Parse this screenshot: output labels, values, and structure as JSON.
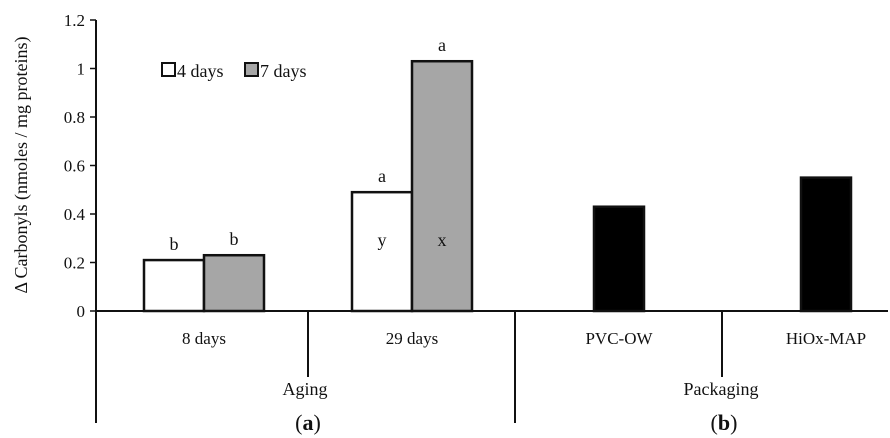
{
  "chart_data": {
    "type": "bar",
    "ylabel": "Δ Carbonyls (nmoles / mg proteins)",
    "ylim": [
      0,
      1.2
    ],
    "yticks": [
      "0",
      "0.2",
      "0.4",
      "0.6",
      "0.8",
      "1",
      "1.2"
    ],
    "ytick_values": [
      0,
      0.2,
      0.4,
      0.6,
      0.8,
      1.0,
      1.2
    ],
    "grid": false,
    "legend": {
      "position": "top-left",
      "entries": [
        {
          "name": "4 days",
          "color": "#ffffff"
        },
        {
          "name": "7 days",
          "color": "#a6a6a6"
        }
      ]
    },
    "groups": [
      {
        "name": "Aging",
        "panel": "(a)",
        "panel_letter": "a",
        "categories": [
          {
            "label": "8 days",
            "bars": [
              {
                "series": "4 days",
                "value": 0.21,
                "color": "#ffffff",
                "top_label": "b",
                "inner_label": ""
              },
              {
                "series": "7 days",
                "value": 0.23,
                "color": "#a6a6a6",
                "top_label": "b",
                "inner_label": ""
              }
            ]
          },
          {
            "label": "29 days",
            "bars": [
              {
                "series": "4 days",
                "value": 0.49,
                "color": "#ffffff",
                "top_label": "a",
                "inner_label": "y"
              },
              {
                "series": "7 days",
                "value": 1.03,
                "color": "#a6a6a6",
                "top_label": "a",
                "inner_label": "x"
              }
            ]
          }
        ]
      },
      {
        "name": "Packaging",
        "panel": "(b)",
        "panel_letter": "b",
        "categories": [
          {
            "label": "PVC-OW",
            "bars": [
              {
                "series": "",
                "value": 0.43,
                "color": "#000000",
                "top_label": "",
                "inner_label": ""
              }
            ]
          },
          {
            "label": "HiOx-MAP",
            "bars": [
              {
                "series": "",
                "value": 0.55,
                "color": "#000000",
                "top_label": "",
                "inner_label": ""
              }
            ]
          }
        ]
      }
    ]
  }
}
